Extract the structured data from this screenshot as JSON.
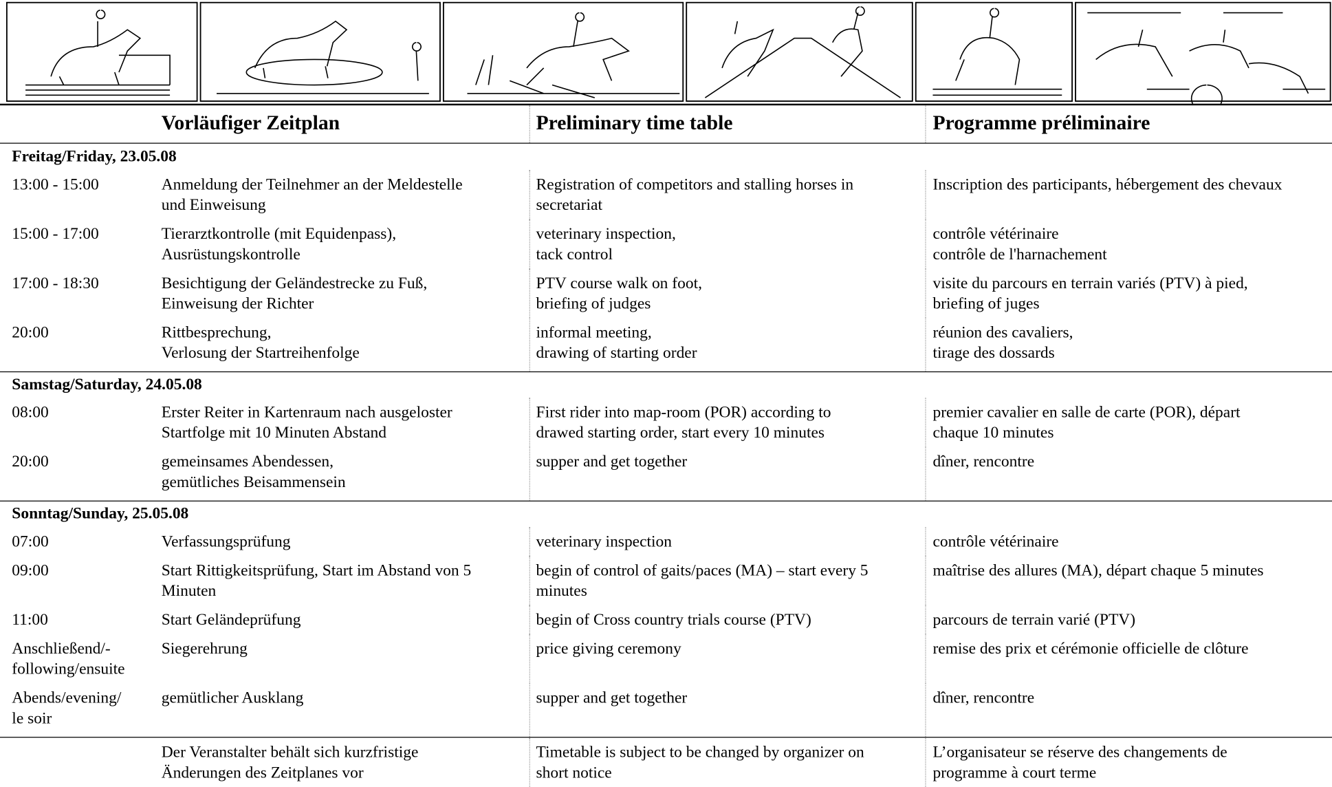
{
  "header": {
    "de": "Vorläufiger Zeitplan",
    "en": "Preliminary time table",
    "fr": "Programme préliminaire"
  },
  "sections": [
    {
      "title": "Freitag/Friday, 23.05.08",
      "rows": [
        {
          "time": [
            "13:00 - 15:00"
          ],
          "de": [
            "Anmeldung der Teilnehmer an der Meldestelle",
            "und Einweisung"
          ],
          "en": [
            "Registration of competitors and stalling horses in",
            "secretariat"
          ],
          "fr": [
            "Inscription des participants, hébergement des chevaux"
          ]
        },
        {
          "time": [
            "15:00 - 17:00"
          ],
          "de": [
            "Tierarztkontrolle (mit Equidenpass),",
            "Ausrüstungskontrolle"
          ],
          "en": [
            "veterinary inspection,",
            "tack control"
          ],
          "fr": [
            "contrôle vétérinaire",
            "contrôle de l'harnachement"
          ]
        },
        {
          "time": [
            "17:00 - 18:30"
          ],
          "de": [
            "Besichtigung der Geländestrecke zu Fuß,",
            "Einweisung der Richter"
          ],
          "en": [
            "PTV course walk on foot,",
            "briefing of judges"
          ],
          "fr": [
            "visite du parcours en terrain variés (PTV) à pied,",
            "briefing of juges"
          ]
        },
        {
          "time": [
            "20:00"
          ],
          "de": [
            "Rittbesprechung,",
            "Verlosung der Startreihenfolge"
          ],
          "en": [
            "informal meeting,",
            "drawing of starting order"
          ],
          "fr": [
            "réunion des cavaliers,",
            "tirage des dossards"
          ]
        }
      ]
    },
    {
      "title": "Samstag/Saturday, 24.05.08",
      "rows": [
        {
          "time": [
            "08:00"
          ],
          "de": [
            "Erster Reiter in Kartenraum nach ausgeloster",
            "Startfolge mit 10 Minuten Abstand"
          ],
          "en": [
            "First rider into map-room (POR) according to",
            "drawed starting order, start every 10 minutes"
          ],
          "fr": [
            "premier cavalier en salle de carte (POR), départ",
            "chaque 10 minutes"
          ]
        },
        {
          "time": [
            "20:00"
          ],
          "de": [
            "gemeinsames Abendessen,",
            "gemütliches Beisammensein"
          ],
          "en": [
            "supper and get together"
          ],
          "fr": [
            "dîner, rencontre"
          ]
        }
      ]
    },
    {
      "title": "Sonntag/Sunday, 25.05.08",
      "rows": [
        {
          "time": [
            "07:00"
          ],
          "de": [
            "Verfassungsprüfung"
          ],
          "en": [
            "veterinary inspection"
          ],
          "fr": [
            "contrôle vétérinaire"
          ]
        },
        {
          "time": [
            "09:00"
          ],
          "de": [
            "Start Rittigkeitsprüfung, Start im Abstand von 5",
            "Minuten"
          ],
          "en": [
            "begin of control of gaits/paces (MA) – start every 5",
            "minutes"
          ],
          "fr": [
            "maîtrise des allures (MA), départ chaque 5 minutes"
          ]
        },
        {
          "time": [
            "11:00"
          ],
          "de": [
            "Start Geländeprüfung"
          ],
          "en": [
            "begin of Cross country trials course (PTV)"
          ],
          "fr": [
            "parcours de terrain varié (PTV)"
          ]
        },
        {
          "time": [
            "Anschließend/-",
            "following/ensuite"
          ],
          "de": [
            "Siegerehrung"
          ],
          "en": [
            "price giving ceremony"
          ],
          "fr": [
            "remise des prix et cérémonie officielle de clôture"
          ]
        },
        {
          "time": [
            "Abends/evening/",
            "le soir"
          ],
          "de": [
            "gemütlicher Ausklang"
          ],
          "en": [
            "supper and get together"
          ],
          "fr": [
            "dîner, rencontre"
          ]
        }
      ]
    }
  ],
  "note": {
    "de": [
      "Der Veranstalter behält sich kurzfristige",
      "Änderungen des Zeitplanes vor"
    ],
    "en": [
      "Timetable is subject to be changed by organizer on",
      "short notice"
    ],
    "fr": [
      "L’organisateur se réserve des changements de",
      "programme à court terme"
    ]
  }
}
